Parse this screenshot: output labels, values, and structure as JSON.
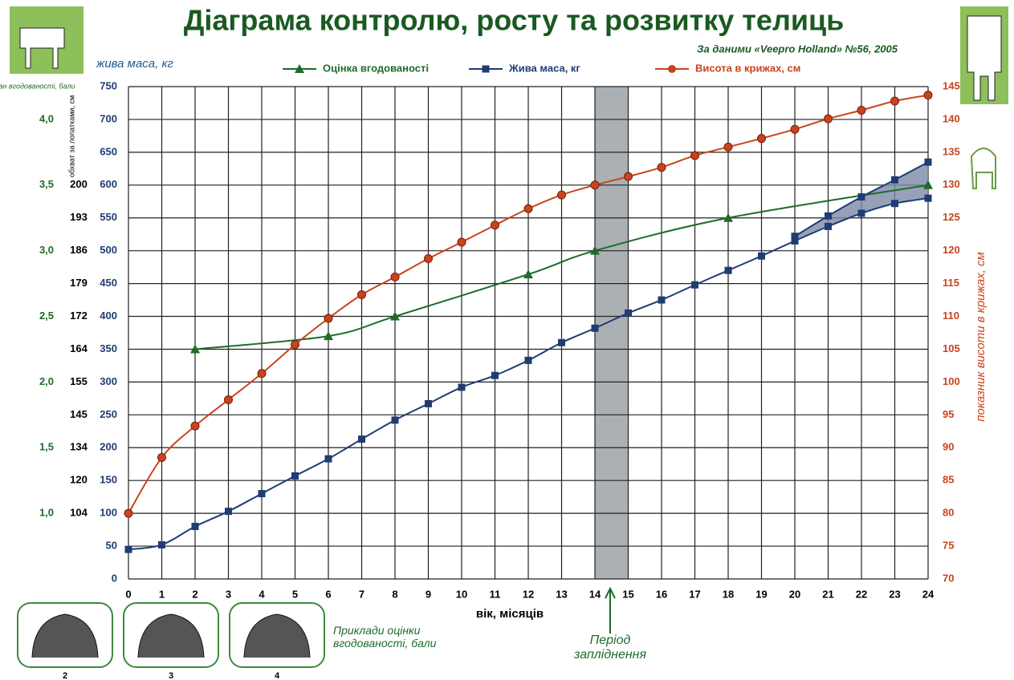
{
  "chart_data": {
    "type": "line",
    "title": "Діаграма контролю, росту та розвитку телиць",
    "subtitle": "За даними «Veepro Holland» №56, 2005",
    "x_label": "вік, місяців",
    "xlim": [
      0,
      24
    ],
    "xticks": [
      0,
      1,
      2,
      3,
      4,
      5,
      6,
      7,
      8,
      9,
      10,
      11,
      12,
      13,
      14,
      15,
      16,
      17,
      18,
      19,
      20,
      21,
      22,
      23,
      24
    ],
    "y_label": "жива маса, кг",
    "ylim": [
      0,
      750
    ],
    "yticks": [
      0,
      50,
      100,
      150,
      200,
      250,
      300,
      350,
      400,
      450,
      500,
      550,
      600,
      650,
      700,
      750
    ],
    "y2_label": "показник висоти в крижах, см",
    "y2lim": [
      70,
      145
    ],
    "y2ticks": [
      70,
      75,
      80,
      85,
      90,
      95,
      100,
      105,
      110,
      115,
      120,
      125,
      130,
      135,
      140,
      145
    ],
    "y3_label": "стан вгодованості, бали",
    "y3lim": [
      0.5,
      4.25
    ],
    "y3ticks": [
      {
        "value": 1,
        "label": "1,0"
      },
      {
        "value": 1.5,
        "label": "1,5"
      },
      {
        "value": 2,
        "label": "2,0"
      },
      {
        "value": 2.5,
        "label": "2,5"
      },
      {
        "value": 3,
        "label": "3,0"
      },
      {
        "value": 3.5,
        "label": "3,5"
      },
      {
        "value": 4,
        "label": "4,0"
      }
    ],
    "y4_label": "обхват за лопатками, см",
    "y4_scale": {
      "girth": [
        104,
        120,
        134,
        145,
        155,
        164,
        172,
        179,
        186,
        193,
        200
      ],
      "live_mass": [
        100,
        150,
        200,
        250,
        300,
        350,
        400,
        450,
        500,
        550,
        600
      ]
    },
    "grid": true,
    "series": [
      {
        "name": "Оцінка вгодованості",
        "color": "#1e6b2a",
        "marker": "triangle",
        "axis": "y3",
        "x": [
          2,
          6,
          8,
          12,
          14,
          18,
          24
        ],
        "values": [
          2.25,
          2.35,
          2.5,
          2.82,
          3.0,
          3.25,
          3.5
        ]
      },
      {
        "name": "Жива маса, кг",
        "color": "#1f3c74",
        "marker": "square",
        "axis": "y",
        "x": [
          0,
          1,
          2,
          3,
          4,
          5,
          6,
          7,
          8,
          9,
          10,
          11,
          12,
          13,
          14,
          15,
          16,
          17,
          18,
          19,
          20,
          21,
          22,
          23,
          24
        ],
        "values": [
          45,
          52,
          80,
          103,
          130,
          157,
          183,
          213,
          242,
          267,
          292,
          310,
          333,
          360,
          382,
          405,
          425,
          448,
          470,
          492,
          515,
          537,
          557,
          572,
          580
        ]
      },
      {
        "color": "#1f3c74",
        "marker": "square",
        "axis": "y",
        "x": [
          20,
          21,
          22,
          23,
          24
        ],
        "values": [
          522,
          553,
          582,
          608,
          635
        ]
      },
      {
        "name": "Висота в крижах, см",
        "color": "#c8441c",
        "marker": "circle",
        "axis": "y2",
        "x": [
          0,
          1,
          2,
          3,
          4,
          5,
          6,
          7,
          8,
          9,
          10,
          11,
          12,
          13,
          14,
          15,
          16,
          17,
          18,
          19,
          20,
          21,
          22,
          23,
          24
        ],
        "values": [
          80,
          88.5,
          93.3,
          97.3,
          101.3,
          105.7,
          109.7,
          113.3,
          116,
          118.8,
          121.3,
          123.9,
          126.4,
          128.5,
          130,
          131.3,
          132.7,
          134.5,
          135.8,
          137.1,
          138.5,
          140.1,
          141.4,
          142.8,
          143.7
        ]
      }
    ],
    "highlight": {
      "x_range": [
        14,
        15
      ],
      "label": "Період запліднення"
    },
    "examples": {
      "label": "Приклади оцінки вгодованості, бали",
      "scores": [
        2,
        3,
        4
      ]
    }
  }
}
